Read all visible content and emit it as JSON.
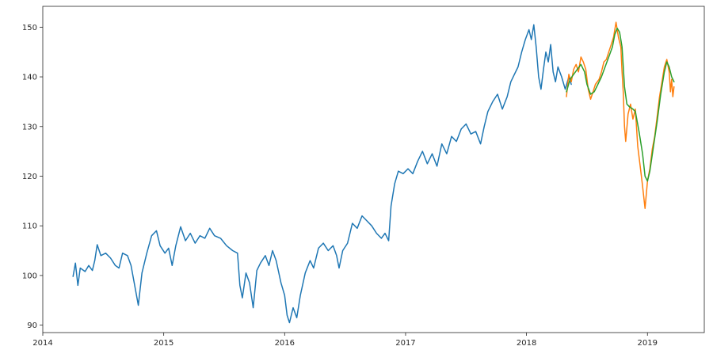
{
  "chart_data": {
    "type": "line",
    "title": "",
    "xlabel": "",
    "ylabel": "",
    "xlim": [
      2014.0,
      2019.47
    ],
    "ylim": [
      88.5,
      154.2
    ],
    "grid": false,
    "x_ticks": [
      {
        "value": 2014,
        "label": "2014"
      },
      {
        "value": 2015,
        "label": "2015"
      },
      {
        "value": 2016,
        "label": "2016"
      },
      {
        "value": 2017,
        "label": "2017"
      },
      {
        "value": 2018,
        "label": "2018"
      },
      {
        "value": 2019,
        "label": "2019"
      }
    ],
    "y_ticks": [
      {
        "value": 90,
        "label": "90"
      },
      {
        "value": 100,
        "label": "100"
      },
      {
        "value": 110,
        "label": "110"
      },
      {
        "value": 120,
        "label": "120"
      },
      {
        "value": 130,
        "label": "130"
      },
      {
        "value": 140,
        "label": "140"
      },
      {
        "value": 150,
        "label": "150"
      }
    ],
    "series": [
      {
        "color": "#1f77b4",
        "points": [
          [
            2014.25,
            99.8
          ],
          [
            2014.27,
            102.5
          ],
          [
            2014.29,
            98.0
          ],
          [
            2014.31,
            101.5
          ],
          [
            2014.35,
            100.8
          ],
          [
            2014.38,
            102.0
          ],
          [
            2014.41,
            101.0
          ],
          [
            2014.43,
            103.0
          ],
          [
            2014.45,
            106.2
          ],
          [
            2014.48,
            104.0
          ],
          [
            2014.52,
            104.5
          ],
          [
            2014.56,
            103.5
          ],
          [
            2014.6,
            102.0
          ],
          [
            2014.63,
            101.5
          ],
          [
            2014.66,
            104.5
          ],
          [
            2014.7,
            104.0
          ],
          [
            2014.73,
            102.0
          ],
          [
            2014.76,
            98.0
          ],
          [
            2014.79,
            94.0
          ],
          [
            2014.82,
            100.5
          ],
          [
            2014.86,
            104.5
          ],
          [
            2014.9,
            108.0
          ],
          [
            2014.94,
            109.0
          ],
          [
            2014.97,
            106.0
          ],
          [
            2015.01,
            104.5
          ],
          [
            2015.04,
            105.5
          ],
          [
            2015.07,
            102.0
          ],
          [
            2015.1,
            106.0
          ],
          [
            2015.14,
            109.8
          ],
          [
            2015.18,
            107.0
          ],
          [
            2015.22,
            108.5
          ],
          [
            2015.26,
            106.5
          ],
          [
            2015.3,
            108.0
          ],
          [
            2015.34,
            107.5
          ],
          [
            2015.38,
            109.5
          ],
          [
            2015.42,
            108.0
          ],
          [
            2015.47,
            107.5
          ],
          [
            2015.52,
            106.0
          ],
          [
            2015.57,
            105.0
          ],
          [
            2015.61,
            104.5
          ],
          [
            2015.63,
            98.0
          ],
          [
            2015.65,
            95.5
          ],
          [
            2015.68,
            100.5
          ],
          [
            2015.71,
            98.5
          ],
          [
            2015.74,
            93.5
          ],
          [
            2015.77,
            101.0
          ],
          [
            2015.8,
            102.5
          ],
          [
            2015.84,
            104.0
          ],
          [
            2015.87,
            102.0
          ],
          [
            2015.9,
            105.0
          ],
          [
            2015.93,
            103.0
          ],
          [
            2015.97,
            98.5
          ],
          [
            2016.0,
            96.0
          ],
          [
            2016.02,
            92.0
          ],
          [
            2016.04,
            90.5
          ],
          [
            2016.07,
            93.5
          ],
          [
            2016.1,
            91.5
          ],
          [
            2016.13,
            96.0
          ],
          [
            2016.17,
            100.5
          ],
          [
            2016.21,
            103.0
          ],
          [
            2016.24,
            101.5
          ],
          [
            2016.28,
            105.5
          ],
          [
            2016.32,
            106.5
          ],
          [
            2016.36,
            105.0
          ],
          [
            2016.4,
            106.0
          ],
          [
            2016.43,
            104.0
          ],
          [
            2016.45,
            101.5
          ],
          [
            2016.48,
            105.0
          ],
          [
            2016.52,
            106.5
          ],
          [
            2016.56,
            110.5
          ],
          [
            2016.6,
            109.5
          ],
          [
            2016.64,
            112.0
          ],
          [
            2016.68,
            111.0
          ],
          [
            2016.72,
            110.0
          ],
          [
            2016.76,
            108.5
          ],
          [
            2016.8,
            107.5
          ],
          [
            2016.83,
            108.5
          ],
          [
            2016.86,
            107.0
          ],
          [
            2016.88,
            114.0
          ],
          [
            2016.91,
            118.5
          ],
          [
            2016.94,
            121.0
          ],
          [
            2016.98,
            120.5
          ],
          [
            2017.02,
            121.5
          ],
          [
            2017.06,
            120.5
          ],
          [
            2017.1,
            123.0
          ],
          [
            2017.14,
            125.0
          ],
          [
            2017.18,
            122.5
          ],
          [
            2017.22,
            124.5
          ],
          [
            2017.26,
            122.0
          ],
          [
            2017.3,
            126.5
          ],
          [
            2017.34,
            124.5
          ],
          [
            2017.38,
            128.0
          ],
          [
            2017.42,
            127.0
          ],
          [
            2017.46,
            129.5
          ],
          [
            2017.5,
            130.5
          ],
          [
            2017.54,
            128.5
          ],
          [
            2017.58,
            129.0
          ],
          [
            2017.62,
            126.5
          ],
          [
            2017.65,
            130.0
          ],
          [
            2017.68,
            133.0
          ],
          [
            2017.72,
            135.0
          ],
          [
            2017.76,
            136.5
          ],
          [
            2017.8,
            133.5
          ],
          [
            2017.84,
            136.0
          ],
          [
            2017.87,
            139.0
          ],
          [
            2017.9,
            140.5
          ],
          [
            2017.93,
            142.0
          ],
          [
            2017.96,
            145.0
          ],
          [
            2017.99,
            147.5
          ],
          [
            2018.02,
            149.5
          ],
          [
            2018.04,
            147.5
          ],
          [
            2018.06,
            150.5
          ],
          [
            2018.08,
            146.0
          ],
          [
            2018.1,
            140.0
          ],
          [
            2018.12,
            137.5
          ],
          [
            2018.14,
            141.5
          ],
          [
            2018.16,
            145.0
          ],
          [
            2018.18,
            143.0
          ],
          [
            2018.2,
            146.5
          ],
          [
            2018.22,
            141.0
          ],
          [
            2018.24,
            139.0
          ],
          [
            2018.26,
            142.0
          ],
          [
            2018.29,
            140.0
          ],
          [
            2018.32,
            137.5
          ],
          [
            2018.35,
            140.0
          ],
          [
            2018.37,
            138.5
          ]
        ]
      },
      {
        "color": "#ff7f0e",
        "points": [
          [
            2018.33,
            136.0
          ],
          [
            2018.35,
            140.5
          ],
          [
            2018.37,
            139.0
          ],
          [
            2018.39,
            141.5
          ],
          [
            2018.41,
            142.5
          ],
          [
            2018.43,
            141.0
          ],
          [
            2018.45,
            144.0
          ],
          [
            2018.47,
            143.0
          ],
          [
            2018.49,
            141.5
          ],
          [
            2018.51,
            137.5
          ],
          [
            2018.53,
            135.5
          ],
          [
            2018.55,
            137.0
          ],
          [
            2018.57,
            138.5
          ],
          [
            2018.6,
            139.5
          ],
          [
            2018.62,
            141.0
          ],
          [
            2018.64,
            143.0
          ],
          [
            2018.66,
            143.5
          ],
          [
            2018.68,
            145.0
          ],
          [
            2018.7,
            146.5
          ],
          [
            2018.72,
            148.0
          ],
          [
            2018.74,
            151.0
          ],
          [
            2018.76,
            148.0
          ],
          [
            2018.78,
            146.0
          ],
          [
            2018.79,
            141.0
          ],
          [
            2018.8,
            137.0
          ],
          [
            2018.81,
            130.0
          ],
          [
            2018.82,
            127.0
          ],
          [
            2018.84,
            132.5
          ],
          [
            2018.86,
            134.5
          ],
          [
            2018.88,
            131.5
          ],
          [
            2018.9,
            133.5
          ],
          [
            2018.92,
            126.0
          ],
          [
            2018.94,
            122.0
          ],
          [
            2018.96,
            118.0
          ],
          [
            2018.98,
            113.5
          ],
          [
            2019.0,
            119.0
          ],
          [
            2019.02,
            121.5
          ],
          [
            2019.04,
            125.5
          ],
          [
            2019.06,
            128.0
          ],
          [
            2019.08,
            132.0
          ],
          [
            2019.1,
            136.0
          ],
          [
            2019.12,
            139.0
          ],
          [
            2019.14,
            142.0
          ],
          [
            2019.16,
            143.5
          ],
          [
            2019.18,
            141.0
          ],
          [
            2019.19,
            137.0
          ],
          [
            2019.2,
            139.5
          ],
          [
            2019.21,
            136.0
          ],
          [
            2019.22,
            138.0
          ]
        ]
      },
      {
        "color": "#2ca02c",
        "points": [
          [
            2018.33,
            137.0
          ],
          [
            2018.36,
            139.5
          ],
          [
            2018.39,
            140.5
          ],
          [
            2018.42,
            141.5
          ],
          [
            2018.45,
            142.5
          ],
          [
            2018.48,
            141.0
          ],
          [
            2018.5,
            138.5
          ],
          [
            2018.53,
            136.5
          ],
          [
            2018.56,
            137.0
          ],
          [
            2018.59,
            138.5
          ],
          [
            2018.62,
            140.0
          ],
          [
            2018.65,
            142.0
          ],
          [
            2018.68,
            144.0
          ],
          [
            2018.71,
            146.0
          ],
          [
            2018.73,
            148.5
          ],
          [
            2018.75,
            149.8
          ],
          [
            2018.77,
            149.0
          ],
          [
            2018.79,
            146.0
          ],
          [
            2018.81,
            138.0
          ],
          [
            2018.83,
            134.5
          ],
          [
            2018.85,
            134.0
          ],
          [
            2018.88,
            133.5
          ],
          [
            2018.9,
            133.0
          ],
          [
            2018.93,
            129.0
          ],
          [
            2018.96,
            124.5
          ],
          [
            2018.98,
            120.0
          ],
          [
            2019.0,
            119.0
          ],
          [
            2019.02,
            121.0
          ],
          [
            2019.05,
            126.0
          ],
          [
            2019.08,
            131.0
          ],
          [
            2019.11,
            136.5
          ],
          [
            2019.14,
            141.0
          ],
          [
            2019.16,
            143.0
          ],
          [
            2019.18,
            142.0
          ],
          [
            2019.2,
            140.0
          ],
          [
            2019.22,
            139.0
          ]
        ]
      }
    ]
  }
}
